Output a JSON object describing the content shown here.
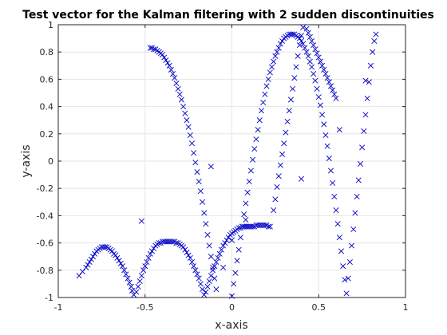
{
  "chart_data": {
    "type": "scatter",
    "title": "Test vector for the Kalman filtering with 2 sudden discontinuities",
    "xlabel": "x-axis",
    "ylabel": "y-axis",
    "xlim": [
      -1,
      1
    ],
    "ylim": [
      -1,
      1
    ],
    "xticks": [
      -1,
      -0.5,
      0,
      0.5,
      1
    ],
    "xtick_labels": [
      "-1",
      "-0.5",
      "0",
      "0.5",
      "1"
    ],
    "yticks": [
      -1,
      -0.8,
      -0.6,
      -0.4,
      -0.2,
      0,
      0.2,
      0.4,
      0.6,
      0.8,
      1
    ],
    "ytick_labels": [
      "-1",
      "-0.8",
      "-0.6",
      "-0.4",
      "-0.2",
      "0",
      "0.2",
      "0.4",
      "0.6",
      "0.8",
      "1"
    ],
    "grid": true,
    "marker": "x",
    "marker_color": "#0000c8",
    "series": [
      {
        "name": "",
        "points": [
          [
            -0.88,
            -0.84
          ],
          [
            -0.86,
            -0.81
          ],
          [
            -0.84,
            -0.78
          ],
          [
            -0.83,
            -0.76
          ],
          [
            -0.82,
            -0.74
          ],
          [
            -0.81,
            -0.72
          ],
          [
            -0.8,
            -0.7
          ],
          [
            -0.79,
            -0.68
          ],
          [
            -0.78,
            -0.66
          ],
          [
            -0.77,
            -0.65
          ],
          [
            -0.76,
            -0.64
          ],
          [
            -0.75,
            -0.63
          ],
          [
            -0.74,
            -0.63
          ],
          [
            -0.73,
            -0.63
          ],
          [
            -0.72,
            -0.63
          ],
          [
            -0.71,
            -0.64
          ],
          [
            -0.7,
            -0.65
          ],
          [
            -0.69,
            -0.66
          ],
          [
            -0.68,
            -0.68
          ],
          [
            -0.67,
            -0.69
          ],
          [
            -0.66,
            -0.71
          ],
          [
            -0.65,
            -0.73
          ],
          [
            -0.64,
            -0.75
          ],
          [
            -0.63,
            -0.77
          ],
          [
            -0.62,
            -0.8
          ],
          [
            -0.61,
            -0.83
          ],
          [
            -0.6,
            -0.86
          ],
          [
            -0.59,
            -0.89
          ],
          [
            -0.58,
            -0.92
          ],
          [
            -0.575,
            -0.95
          ],
          [
            -0.565,
            -0.98
          ],
          [
            -0.55,
            -0.96
          ],
          [
            -0.54,
            -0.92
          ],
          [
            -0.53,
            -0.88
          ],
          [
            -0.52,
            -0.84
          ],
          [
            -0.51,
            -0.8
          ],
          [
            -0.5,
            -0.77
          ],
          [
            -0.49,
            -0.74
          ],
          [
            -0.48,
            -0.71
          ],
          [
            -0.47,
            -0.68
          ],
          [
            -0.46,
            -0.66
          ],
          [
            -0.45,
            -0.64
          ],
          [
            -0.44,
            -0.62
          ],
          [
            -0.43,
            -0.61
          ],
          [
            -0.42,
            -0.6
          ],
          [
            -0.41,
            -0.6
          ],
          [
            -0.4,
            -0.59
          ],
          [
            -0.39,
            -0.59
          ],
          [
            -0.38,
            -0.59
          ],
          [
            -0.37,
            -0.59
          ],
          [
            -0.36,
            -0.59
          ],
          [
            -0.35,
            -0.59
          ],
          [
            -0.34,
            -0.59
          ],
          [
            -0.33,
            -0.59
          ],
          [
            -0.32,
            -0.6
          ],
          [
            -0.31,
            -0.6
          ],
          [
            -0.3,
            -0.61
          ],
          [
            -0.29,
            -0.62
          ],
          [
            -0.28,
            -0.63
          ],
          [
            -0.27,
            -0.65
          ],
          [
            -0.26,
            -0.67
          ],
          [
            -0.25,
            -0.69
          ],
          [
            -0.24,
            -0.71
          ],
          [
            -0.23,
            -0.74
          ],
          [
            -0.22,
            -0.77
          ],
          [
            -0.21,
            -0.8
          ],
          [
            -0.2,
            -0.83
          ],
          [
            -0.19,
            -0.86
          ],
          [
            -0.18,
            -0.9
          ],
          [
            -0.17,
            -0.94
          ],
          [
            -0.16,
            -0.98
          ],
          [
            -0.15,
            -0.96
          ],
          [
            -0.14,
            -0.92
          ],
          [
            -0.13,
            -0.88
          ],
          [
            -0.12,
            -0.84
          ],
          [
            -0.11,
            -0.8
          ],
          [
            -0.1,
            -0.77
          ],
          [
            -0.09,
            -0.74
          ],
          [
            -0.08,
            -0.71
          ],
          [
            -0.07,
            -0.68
          ],
          [
            -0.06,
            -0.65
          ],
          [
            -0.05,
            -0.62
          ],
          [
            -0.04,
            -0.6
          ],
          [
            -0.03,
            -0.58
          ],
          [
            -0.02,
            -0.56
          ],
          [
            -0.01,
            -0.54
          ],
          [
            0.0,
            -0.53
          ],
          [
            0.01,
            -0.52
          ],
          [
            0.02,
            -0.51
          ],
          [
            0.03,
            -0.5
          ],
          [
            0.04,
            -0.49
          ],
          [
            0.05,
            -0.49
          ],
          [
            0.06,
            -0.48
          ],
          [
            0.07,
            -0.48
          ],
          [
            0.08,
            -0.48
          ],
          [
            0.09,
            -0.48
          ],
          [
            0.1,
            -0.48
          ],
          [
            0.11,
            -0.48
          ],
          [
            0.12,
            -0.48
          ],
          [
            0.13,
            -0.48
          ],
          [
            0.14,
            -0.47
          ],
          [
            0.15,
            -0.47
          ],
          [
            0.16,
            -0.47
          ],
          [
            0.17,
            -0.47
          ],
          [
            0.18,
            -0.47
          ],
          [
            0.19,
            -0.47
          ],
          [
            0.2,
            -0.47
          ],
          [
            0.21,
            -0.48
          ],
          [
            0.22,
            -0.48
          ],
          [
            -0.47,
            0.83
          ],
          [
            -0.46,
            0.83
          ],
          [
            -0.45,
            0.82
          ],
          [
            -0.44,
            0.82
          ],
          [
            -0.43,
            0.81
          ],
          [
            -0.42,
            0.8
          ],
          [
            -0.41,
            0.79
          ],
          [
            -0.4,
            0.78
          ],
          [
            -0.39,
            0.76
          ],
          [
            -0.38,
            0.74
          ],
          [
            -0.37,
            0.72
          ],
          [
            -0.36,
            0.7
          ],
          [
            -0.35,
            0.67
          ],
          [
            -0.34,
            0.64
          ],
          [
            -0.33,
            0.61
          ],
          [
            -0.32,
            0.57
          ],
          [
            -0.31,
            0.53
          ],
          [
            -0.3,
            0.49
          ],
          [
            -0.29,
            0.45
          ],
          [
            -0.28,
            0.4
          ],
          [
            -0.27,
            0.35
          ],
          [
            -0.26,
            0.3
          ],
          [
            -0.25,
            0.25
          ],
          [
            -0.24,
            0.19
          ],
          [
            -0.23,
            0.13
          ],
          [
            -0.22,
            0.06
          ],
          [
            -0.21,
            -0.01
          ],
          [
            -0.2,
            -0.08
          ],
          [
            -0.19,
            -0.15
          ],
          [
            -0.18,
            -0.22
          ],
          [
            -0.17,
            -0.3
          ],
          [
            -0.16,
            -0.38
          ],
          [
            -0.15,
            -0.46
          ],
          [
            -0.14,
            -0.54
          ],
          [
            -0.13,
            -0.62
          ],
          [
            -0.12,
            -0.7
          ],
          [
            -0.11,
            -0.78
          ],
          [
            -0.1,
            -0.86
          ],
          [
            -0.09,
            -0.94
          ],
          [
            0.0,
            -0.99
          ],
          [
            0.01,
            -0.9
          ],
          [
            0.02,
            -0.82
          ],
          [
            0.03,
            -0.73
          ],
          [
            0.04,
            -0.65
          ],
          [
            0.05,
            -0.56
          ],
          [
            0.06,
            -0.48
          ],
          [
            0.07,
            -0.39
          ],
          [
            0.08,
            -0.31
          ],
          [
            0.09,
            -0.23
          ],
          [
            0.1,
            -0.15
          ],
          [
            0.11,
            -0.07
          ],
          [
            0.12,
            0.01
          ],
          [
            0.13,
            0.09
          ],
          [
            0.14,
            0.16
          ],
          [
            0.15,
            0.23
          ],
          [
            0.16,
            0.3
          ],
          [
            0.17,
            0.37
          ],
          [
            0.18,
            0.43
          ],
          [
            0.19,
            0.49
          ],
          [
            0.2,
            0.55
          ],
          [
            0.21,
            0.6
          ],
          [
            0.22,
            0.65
          ],
          [
            0.23,
            0.69
          ],
          [
            0.24,
            0.73
          ],
          [
            0.25,
            0.77
          ],
          [
            0.26,
            0.8
          ],
          [
            0.27,
            0.83
          ],
          [
            0.28,
            0.86
          ],
          [
            0.29,
            0.88
          ],
          [
            0.3,
            0.9
          ],
          [
            0.31,
            0.91
          ],
          [
            0.32,
            0.92
          ],
          [
            0.33,
            0.93
          ],
          [
            0.34,
            0.93
          ],
          [
            0.35,
            0.93
          ],
          [
            0.36,
            0.93
          ],
          [
            0.37,
            0.92
          ],
          [
            0.38,
            0.91
          ],
          [
            0.39,
            0.9
          ],
          [
            0.4,
            0.88
          ],
          [
            0.41,
            0.86
          ],
          [
            0.42,
            0.83
          ],
          [
            0.43,
            0.8
          ],
          [
            0.44,
            0.77
          ],
          [
            0.45,
            0.73
          ],
          [
            0.46,
            0.69
          ],
          [
            0.47,
            0.64
          ],
          [
            0.48,
            0.59
          ],
          [
            0.49,
            0.53
          ],
          [
            0.5,
            0.47
          ],
          [
            0.51,
            0.41
          ],
          [
            0.52,
            0.34
          ],
          [
            0.53,
            0.27
          ],
          [
            0.54,
            0.19
          ],
          [
            0.55,
            0.11
          ],
          [
            0.56,
            0.02
          ],
          [
            0.57,
            -0.07
          ],
          [
            0.58,
            -0.16
          ],
          [
            0.59,
            -0.26
          ],
          [
            0.6,
            -0.36
          ],
          [
            0.61,
            -0.46
          ],
          [
            0.62,
            -0.56
          ],
          [
            0.63,
            -0.66
          ],
          [
            0.64,
            -0.77
          ],
          [
            0.65,
            -0.87
          ],
          [
            0.66,
            -0.97
          ],
          [
            0.24,
            -0.36
          ],
          [
            0.25,
            -0.28
          ],
          [
            0.26,
            -0.19
          ],
          [
            0.27,
            -0.11
          ],
          [
            0.28,
            -0.03
          ],
          [
            0.29,
            0.05
          ],
          [
            0.3,
            0.13
          ],
          [
            0.31,
            0.21
          ],
          [
            0.32,
            0.29
          ],
          [
            0.33,
            0.37
          ],
          [
            0.34,
            0.45
          ],
          [
            0.35,
            0.53
          ],
          [
            0.36,
            0.61
          ],
          [
            0.37,
            0.69
          ],
          [
            0.38,
            0.77
          ],
          [
            0.39,
            0.85
          ],
          [
            0.4,
            0.92
          ],
          [
            0.41,
            0.98
          ],
          [
            0.43,
            0.97
          ],
          [
            0.44,
            0.94
          ],
          [
            0.45,
            0.91
          ],
          [
            0.46,
            0.88
          ],
          [
            0.47,
            0.85
          ],
          [
            0.48,
            0.82
          ],
          [
            0.49,
            0.79
          ],
          [
            0.5,
            0.76
          ],
          [
            0.51,
            0.73
          ],
          [
            0.52,
            0.7
          ],
          [
            0.53,
            0.67
          ],
          [
            0.54,
            0.64
          ],
          [
            0.55,
            0.61
          ],
          [
            0.56,
            0.58
          ],
          [
            0.57,
            0.55
          ],
          [
            0.58,
            0.52
          ],
          [
            0.59,
            0.49
          ],
          [
            0.6,
            0.46
          ],
          [
            0.67,
            -0.86
          ],
          [
            0.68,
            -0.74
          ],
          [
            0.69,
            -0.62
          ],
          [
            0.7,
            -0.5
          ],
          [
            0.71,
            -0.38
          ],
          [
            0.72,
            -0.26
          ],
          [
            0.73,
            -0.14
          ],
          [
            0.74,
            -0.02
          ],
          [
            0.75,
            0.1
          ],
          [
            0.76,
            0.22
          ],
          [
            0.77,
            0.34
          ],
          [
            0.78,
            0.46
          ],
          [
            0.79,
            0.58
          ],
          [
            0.8,
            0.7
          ],
          [
            0.81,
            0.8
          ],
          [
            0.82,
            0.88
          ],
          [
            0.83,
            0.93
          ],
          [
            -0.52,
            -0.44
          ],
          [
            -0.12,
            -0.04
          ],
          [
            0.4,
            -0.13
          ],
          [
            0.62,
            0.23
          ],
          [
            0.77,
            0.59
          ],
          [
            0.0,
            -0.58
          ],
          [
            0.08,
            -0.43
          ],
          [
            -0.05,
            -0.78
          ]
        ]
      }
    ]
  }
}
